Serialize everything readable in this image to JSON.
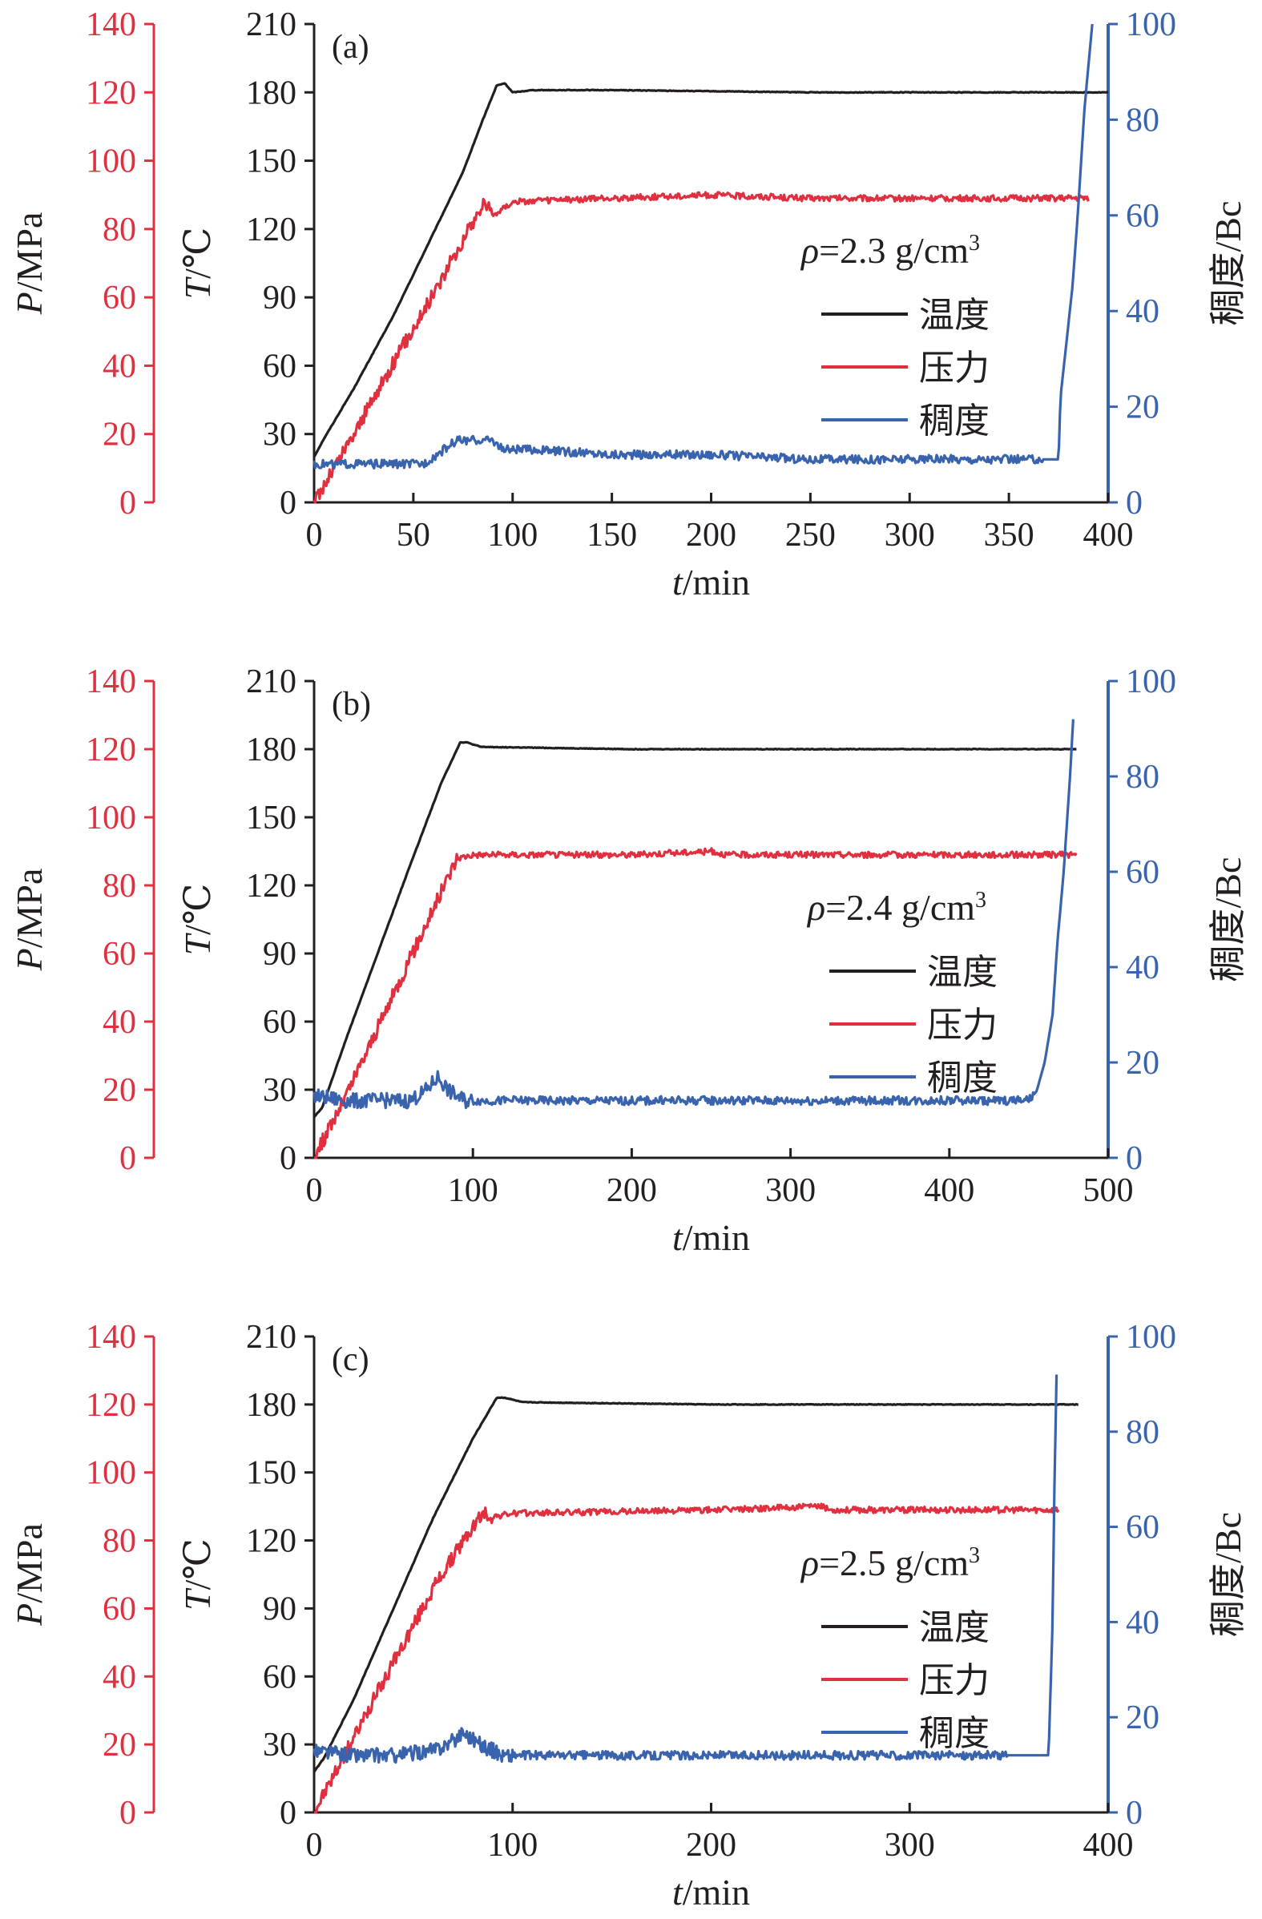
{
  "colors": {
    "temperature": "#231f20",
    "pressure": "#e03040",
    "consistency": "#3a63ad",
    "axis_black": "#231f20"
  },
  "chart_data": [
    {
      "type": "line",
      "panel_label": "(a)",
      "density_label": "ρ=2.3 g/cm³",
      "xlabel": "t/min",
      "xlim": [
        0,
        400
      ],
      "xticks": [
        0,
        50,
        100,
        150,
        200,
        250,
        300,
        350,
        400
      ],
      "y_left_outer": {
        "label": "P/MPa",
        "range": [
          0,
          140
        ],
        "ticks": [
          0,
          20,
          40,
          60,
          80,
          100,
          120,
          140
        ]
      },
      "y_left_inner": {
        "label": "T/℃",
        "range": [
          0,
          210
        ],
        "ticks": [
          0,
          30,
          60,
          90,
          120,
          150,
          180,
          210
        ]
      },
      "y_right": {
        "label": "稠度/Bc",
        "range": [
          0,
          100
        ],
        "ticks": [
          0,
          20,
          40,
          60,
          80,
          100
        ]
      },
      "legend": [
        "温度",
        "压力",
        "稠度"
      ],
      "series": [
        {
          "name": "温度",
          "axis": "T",
          "points": [
            [
              0,
              20
            ],
            [
              5,
              28
            ],
            [
              20,
              50
            ],
            [
              40,
              82
            ],
            [
              60,
              118
            ],
            [
              75,
              145
            ],
            [
              85,
              168
            ],
            [
              92,
              183
            ],
            [
              96,
              184
            ],
            [
              100,
              180
            ],
            [
              110,
              181
            ],
            [
              150,
              181
            ],
            [
              250,
              180
            ],
            [
              400,
              180
            ]
          ]
        },
        {
          "name": "压力",
          "axis": "P",
          "points": [
            [
              0,
              0
            ],
            [
              20,
              20
            ],
            [
              40,
              41
            ],
            [
              60,
              61
            ],
            [
              80,
              82
            ],
            [
              86,
              88
            ],
            [
              90,
              84
            ],
            [
              100,
              88
            ],
            [
              200,
              90
            ],
            [
              250,
              89
            ],
            [
              350,
              89
            ],
            [
              390,
              89
            ]
          ]
        },
        {
          "name": "稠度",
          "axis": "Bc",
          "points": [
            [
              0,
              8
            ],
            [
              55,
              8
            ],
            [
              62,
              10
            ],
            [
              72,
              13
            ],
            [
              90,
              13
            ],
            [
              95,
              11
            ],
            [
              110,
              11
            ],
            [
              150,
              10
            ],
            [
              200,
              10
            ],
            [
              250,
              9
            ],
            [
              300,
              9
            ],
            [
              350,
              9
            ],
            [
              375,
              9
            ],
            [
              376,
              22
            ],
            [
              382,
              45
            ],
            [
              385,
              62
            ],
            [
              388,
              82
            ],
            [
              392,
              100
            ]
          ]
        }
      ]
    },
    {
      "type": "line",
      "panel_label": "(b)",
      "density_label": "ρ=2.4 g/cm³",
      "xlabel": "t/min",
      "xlim": [
        0,
        500
      ],
      "xticks": [
        0,
        100,
        200,
        300,
        400,
        500
      ],
      "y_left_outer": {
        "label": "P/MPa",
        "range": [
          0,
          140
        ],
        "ticks": [
          0,
          20,
          40,
          60,
          80,
          100,
          120,
          140
        ]
      },
      "y_left_inner": {
        "label": "T/℃",
        "range": [
          0,
          210
        ],
        "ticks": [
          0,
          30,
          60,
          90,
          120,
          150,
          180,
          210
        ]
      },
      "y_right": {
        "label": "稠度/Bc",
        "range": [
          0,
          100
        ],
        "ticks": [
          0,
          20,
          40,
          60,
          80,
          100
        ]
      },
      "legend": [
        "温度",
        "压力",
        "稠度"
      ],
      "series": [
        {
          "name": "温度",
          "axis": "T",
          "points": [
            [
              0,
              18
            ],
            [
              5,
              22
            ],
            [
              20,
              52
            ],
            [
              40,
              90
            ],
            [
              60,
              128
            ],
            [
              80,
              165
            ],
            [
              92,
              183
            ],
            [
              96,
              183
            ],
            [
              105,
              181
            ],
            [
              200,
              180
            ],
            [
              300,
              180
            ],
            [
              400,
              180
            ],
            [
              480,
              180
            ]
          ]
        },
        {
          "name": "压力",
          "axis": "P",
          "points": [
            [
              0,
              0
            ],
            [
              20,
              18
            ],
            [
              40,
              38
            ],
            [
              60,
              58
            ],
            [
              80,
              78
            ],
            [
              90,
              88
            ],
            [
              100,
              89
            ],
            [
              200,
              89
            ],
            [
              250,
              90
            ],
            [
              260,
              89
            ],
            [
              350,
              89
            ],
            [
              480,
              89
            ]
          ]
        },
        {
          "name": "稠度",
          "axis": "Bc",
          "points": [
            [
              0,
              13
            ],
            [
              20,
              12
            ],
            [
              40,
              12
            ],
            [
              60,
              12
            ],
            [
              70,
              14
            ],
            [
              78,
              17
            ],
            [
              85,
              14
            ],
            [
              95,
              12
            ],
            [
              150,
              12
            ],
            [
              200,
              12
            ],
            [
              300,
              12
            ],
            [
              400,
              12
            ],
            [
              450,
              12
            ],
            [
              455,
              14
            ],
            [
              460,
              20
            ],
            [
              465,
              30
            ],
            [
              468,
              45
            ],
            [
              472,
              60
            ],
            [
              476,
              80
            ],
            [
              478,
              92
            ]
          ]
        }
      ]
    },
    {
      "type": "line",
      "panel_label": "(c)",
      "density_label": "ρ=2.5 g/cm³",
      "xlabel": "t/min",
      "xlim": [
        0,
        400
      ],
      "xticks": [
        0,
        100,
        200,
        300,
        400
      ],
      "y_left_outer": {
        "label": "P/MPa",
        "range": [
          0,
          140
        ],
        "ticks": [
          0,
          20,
          40,
          60,
          80,
          100,
          120,
          140
        ]
      },
      "y_left_inner": {
        "label": "T/℃",
        "range": [
          0,
          210
        ],
        "ticks": [
          0,
          30,
          60,
          90,
          120,
          150,
          180,
          210
        ]
      },
      "y_right": {
        "label": "稠度/Bc",
        "range": [
          0,
          100
        ],
        "ticks": [
          0,
          20,
          40,
          60,
          80,
          100
        ]
      },
      "legend": [
        "温度",
        "压力",
        "稠度"
      ],
      "series": [
        {
          "name": "温度",
          "axis": "T",
          "points": [
            [
              0,
              18
            ],
            [
              5,
              24
            ],
            [
              20,
              50
            ],
            [
              40,
              90
            ],
            [
              60,
              130
            ],
            [
              80,
              165
            ],
            [
              92,
              183
            ],
            [
              96,
              183
            ],
            [
              105,
              181
            ],
            [
              200,
              180
            ],
            [
              300,
              180
            ],
            [
              385,
              180
            ]
          ]
        },
        {
          "name": "压力",
          "axis": "P",
          "points": [
            [
              0,
              0
            ],
            [
              20,
              22
            ],
            [
              40,
              44
            ],
            [
              60,
              66
            ],
            [
              80,
              84
            ],
            [
              85,
              88
            ],
            [
              90,
              87
            ],
            [
              100,
              88
            ],
            [
              200,
              89
            ],
            [
              255,
              90
            ],
            [
              260,
              89
            ],
            [
              375,
              89
            ]
          ]
        },
        {
          "name": "稠度",
          "axis": "Bc",
          "points": [
            [
              0,
              13
            ],
            [
              20,
              12
            ],
            [
              40,
              12
            ],
            [
              60,
              13
            ],
            [
              70,
              15
            ],
            [
              75,
              17
            ],
            [
              85,
              14
            ],
            [
              95,
              12
            ],
            [
              150,
              12
            ],
            [
              200,
              12
            ],
            [
              300,
              12
            ],
            [
              370,
              12
            ],
            [
              372,
              40
            ],
            [
              373,
              70
            ],
            [
              374,
              92
            ]
          ]
        }
      ]
    }
  ]
}
